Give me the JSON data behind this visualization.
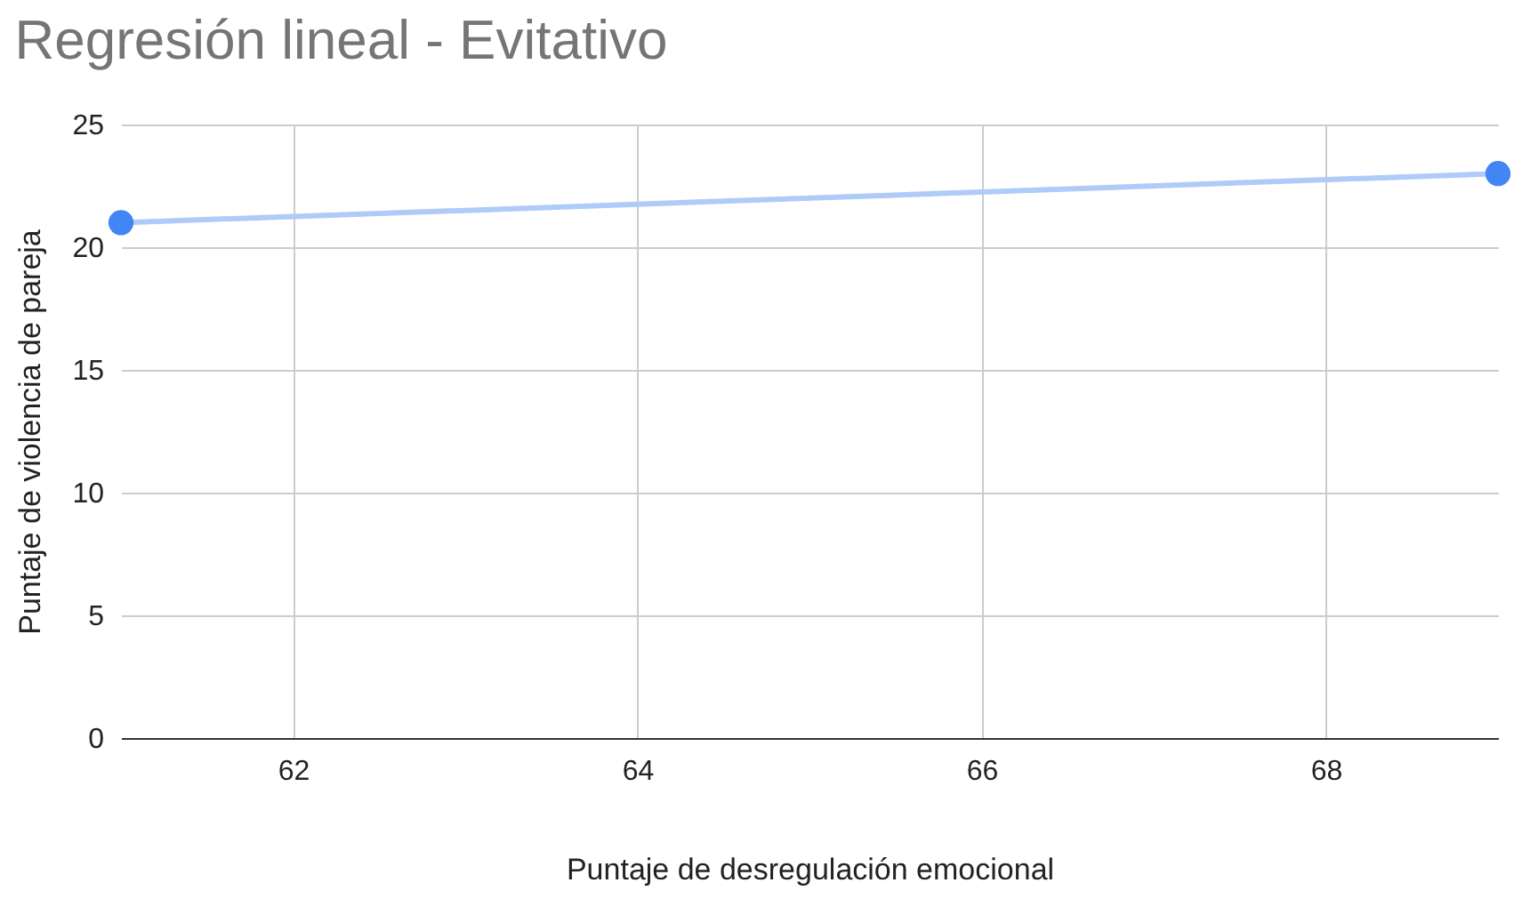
{
  "chart_data": {
    "type": "scatter",
    "title": "Regresión lineal - Evitativo",
    "xlabel": "Puntaje de desregulación emocional",
    "ylabel": "Puntaje de violencia de pareja",
    "x": [
      61,
      69
    ],
    "series": [
      {
        "color": "#4285f4",
        "values": [
          21,
          23
        ],
        "marker": "circle"
      },
      {
        "type": "line",
        "color": "#aecbfa",
        "values": [
          21,
          23
        ],
        "marker": "none",
        "line_style": "solid"
      }
    ],
    "xlim": [
      61,
      69
    ],
    "xticks": [
      62,
      64,
      66,
      68
    ],
    "ylim": [
      0,
      25
    ],
    "yticks": [
      0,
      5,
      10,
      15,
      20,
      25
    ],
    "grid": true
  }
}
